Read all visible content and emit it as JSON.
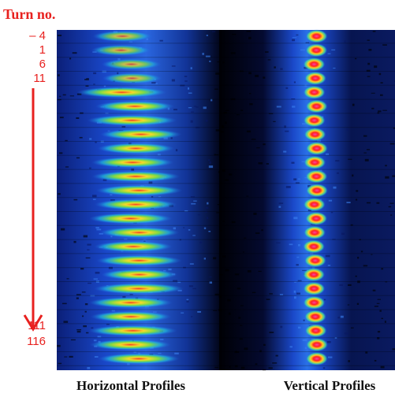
{
  "header": {
    "title": "Turn no."
  },
  "turn_labels": [
    "– 4",
    "1",
    "6",
    "11",
    "111",
    "116"
  ],
  "panel_labels": [
    "Horizontal Profiles",
    "Vertical Profiles"
  ]
}
